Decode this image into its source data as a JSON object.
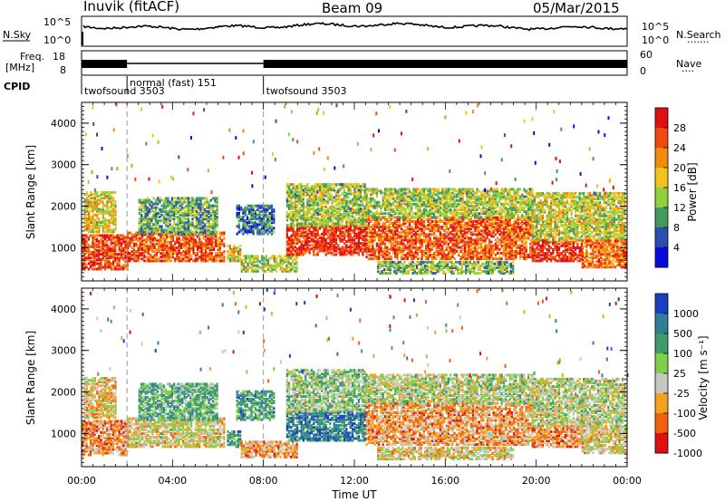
{
  "header": {
    "station": "Inuvik (fitACF)",
    "beam": "Beam 09",
    "date": "05/Mar/2015"
  },
  "status_panels": {
    "nsky_label": "N.Sky",
    "nsky_ticks": [
      "10^5",
      "10^0"
    ],
    "nsearch_label": "N.Search",
    "nsearch_ticks": [
      "10^5",
      "10^0"
    ],
    "freq_label_line1": "Freq.",
    "freq_label_line2": "[MHz]",
    "freq_ticks": [
      "18",
      "8"
    ],
    "nave_label": "Nave",
    "nave_ticks": [
      "60",
      "0"
    ],
    "dots": "·······",
    "dots_short": "····",
    "cpid_label": "CPID",
    "cpid_segments": [
      {
        "label": "twofsound 3503",
        "start_hour": 0,
        "end_hour": 2
      },
      {
        "label": "normal (fast) 151",
        "start_hour": 2,
        "end_hour": 8
      },
      {
        "label": "twofsound 3503",
        "start_hour": 8,
        "end_hour": 24
      }
    ]
  },
  "chart_data": [
    {
      "type": "heatmap",
      "name": "power",
      "title": "",
      "xlabel": "",
      "ylabel": "Slant Range [km]",
      "x_range_hours": [
        0,
        24
      ],
      "y_range_km": [
        200,
        4500
      ],
      "yticks": [
        "1000",
        "2000",
        "3000",
        "4000"
      ],
      "colorbar_label": "Power [dB]",
      "colorbar_ticks": [
        "28",
        "24",
        "20",
        "16",
        "12",
        "8",
        "4"
      ],
      "colorbar_colors": [
        "#e01010",
        "#f04a10",
        "#f58a0a",
        "#f2c41a",
        "#8ed13c",
        "#3f9c5e",
        "#2b4fb0",
        "#0a0ae0"
      ],
      "echo_bands": [
        {
          "start": 0.0,
          "end": 2.0,
          "low": 450,
          "high": 1300,
          "level": 0.85
        },
        {
          "start": 0.1,
          "end": 1.5,
          "low": 1350,
          "high": 2300,
          "level": 0.55
        },
        {
          "start": 2.0,
          "end": 6.3,
          "low": 650,
          "high": 1350,
          "level": 0.8
        },
        {
          "start": 2.5,
          "end": 6.0,
          "low": 1300,
          "high": 2200,
          "level": 0.35
        },
        {
          "start": 6.4,
          "end": 7.0,
          "low": 650,
          "high": 1050,
          "level": 0.55
        },
        {
          "start": 6.8,
          "end": 8.5,
          "low": 1300,
          "high": 2000,
          "level": 0.25
        },
        {
          "start": 7.0,
          "end": 9.5,
          "low": 400,
          "high": 800,
          "level": 0.45
        },
        {
          "start": 9.0,
          "end": 12.5,
          "low": 800,
          "high": 1500,
          "level": 0.9
        },
        {
          "start": 9.0,
          "end": 12.5,
          "low": 1500,
          "high": 2500,
          "level": 0.45
        },
        {
          "start": 12.5,
          "end": 19.8,
          "low": 700,
          "high": 1700,
          "level": 0.8
        },
        {
          "start": 12.5,
          "end": 19.8,
          "low": 1700,
          "high": 2400,
          "level": 0.45
        },
        {
          "start": 13.0,
          "end": 19.0,
          "low": 350,
          "high": 650,
          "level": 0.4
        },
        {
          "start": 19.8,
          "end": 22.0,
          "low": 650,
          "high": 1150,
          "level": 0.9
        },
        {
          "start": 19.8,
          "end": 23.9,
          "low": 1150,
          "high": 2300,
          "level": 0.5
        },
        {
          "start": 22.0,
          "end": 23.9,
          "low": 500,
          "high": 1150,
          "level": 0.75
        }
      ]
    },
    {
      "type": "heatmap",
      "name": "velocity",
      "title": "",
      "xlabel": "Time UT",
      "ylabel": "Slant Range [km]",
      "x_range_hours": [
        0,
        24
      ],
      "y_range_km": [
        200,
        4500
      ],
      "xticks": [
        "00:00",
        "04:00",
        "08:00",
        "12:00",
        "16:00",
        "20:00",
        "00:00"
      ],
      "yticks": [
        "1000",
        "2000",
        "3000",
        "4000"
      ],
      "colorbar_label": "Velocity [m s⁻¹]",
      "colorbar_ticks": [
        "1000",
        "500",
        "100",
        "25",
        "-25",
        "-100",
        "-500",
        "-1000"
      ],
      "colorbar_colors": [
        "#1a3fc0",
        "#2f7f9a",
        "#3f9c6a",
        "#7ed04a",
        "#c8c8c0",
        "#f5a020",
        "#f06010",
        "#e01010"
      ],
      "echo_bands": [
        {
          "start": 0.0,
          "end": 2.0,
          "low": 450,
          "high": 1300,
          "level": 0.72
        },
        {
          "start": 0.1,
          "end": 1.5,
          "low": 1350,
          "high": 2300,
          "level": 0.62
        },
        {
          "start": 2.0,
          "end": 6.3,
          "low": 650,
          "high": 1350,
          "level": 0.58
        },
        {
          "start": 2.5,
          "end": 6.0,
          "low": 1300,
          "high": 2200,
          "level": 0.35
        },
        {
          "start": 6.4,
          "end": 7.0,
          "low": 650,
          "high": 1050,
          "level": 0.3
        },
        {
          "start": 6.8,
          "end": 8.5,
          "low": 1300,
          "high": 2000,
          "level": 0.3
        },
        {
          "start": 7.0,
          "end": 9.5,
          "low": 400,
          "high": 800,
          "level": 0.7
        },
        {
          "start": 9.0,
          "end": 12.5,
          "low": 800,
          "high": 1500,
          "level": 0.2
        },
        {
          "start": 9.0,
          "end": 12.5,
          "low": 1500,
          "high": 2500,
          "level": 0.45
        },
        {
          "start": 12.5,
          "end": 19.8,
          "low": 700,
          "high": 1700,
          "level": 0.7
        },
        {
          "start": 12.5,
          "end": 19.8,
          "low": 1700,
          "high": 2400,
          "level": 0.5
        },
        {
          "start": 13.0,
          "end": 19.0,
          "low": 350,
          "high": 650,
          "level": 0.6
        },
        {
          "start": 19.8,
          "end": 22.0,
          "low": 650,
          "high": 1150,
          "level": 0.72
        },
        {
          "start": 19.8,
          "end": 23.9,
          "low": 1150,
          "high": 2300,
          "level": 0.52
        },
        {
          "start": 22.0,
          "end": 23.9,
          "low": 500,
          "high": 1150,
          "level": 0.6
        }
      ]
    }
  ]
}
